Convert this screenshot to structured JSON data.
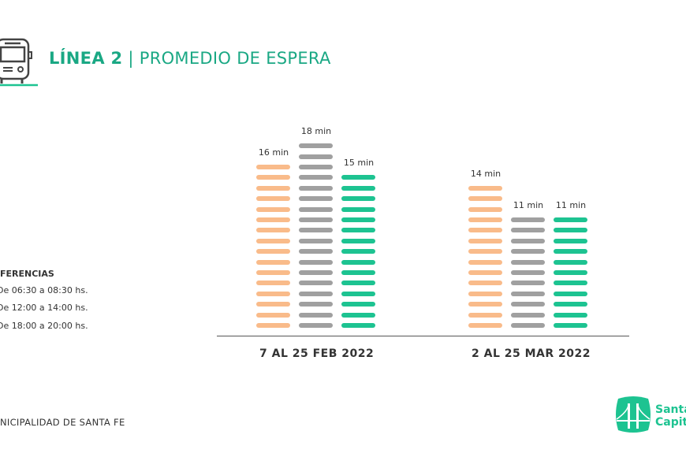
{
  "header": {
    "title_bold": "LÍNEA 2",
    "separator": "|",
    "title_rest": "PROMEDIO DE ESPERA",
    "icon": "bus-icon"
  },
  "legend": {
    "title": "FERENCIAS",
    "items": [
      {
        "label": "De 06:30 a 08:30 hs.",
        "color": "#f9bb8a"
      },
      {
        "label": "De 12:00 a 14:00 hs.",
        "color": "#a0a0a0"
      },
      {
        "label": "De 18:00 a 20:00 hs.",
        "color": "#1dc391"
      }
    ]
  },
  "footer": {
    "left": "NICIPALIDAD DE SANTA FE",
    "logo_line1": "Santa",
    "logo_line2": "Capita"
  },
  "chart_data": {
    "type": "bar",
    "title": "LÍNEA 2 | PROMEDIO DE ESPERA",
    "categories": [
      "7 AL 25 FEB 2022",
      "2 AL 25 MAR 2022"
    ],
    "series": [
      {
        "name": "De 06:30 a 08:30 hs.",
        "values": [
          16,
          14
        ],
        "labels": [
          "16 min",
          "14 min"
        ],
        "color": "#f9bb8a"
      },
      {
        "name": "De 12:00 a 14:00 hs.",
        "values": [
          18,
          11
        ],
        "labels": [
          "18 min",
          "11 min"
        ],
        "color": "#a0a0a0"
      },
      {
        "name": "De 18:00 a 20:00 hs.",
        "values": [
          15,
          11
        ],
        "labels": [
          "15 min",
          "11 min"
        ],
        "color": "#1dc391"
      }
    ],
    "unit": "min",
    "ylabel": "",
    "xlabel": ""
  }
}
